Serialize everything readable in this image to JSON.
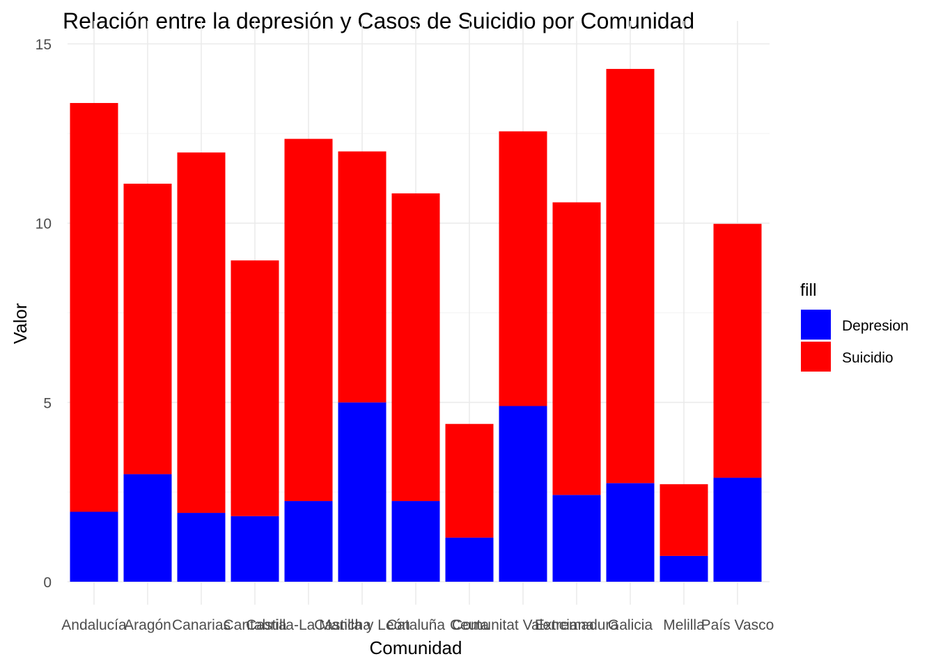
{
  "chart_data": {
    "type": "bar",
    "stacked": true,
    "title": "Relación entre la depresión y Casos de Suicidio por Comunidad",
    "xlabel": "Comunidad",
    "ylabel": "Valor",
    "ylim": [
      0,
      15
    ],
    "yticks": [
      0,
      5,
      10,
      15
    ],
    "grid": true,
    "legend": {
      "title": "fill",
      "position": "right"
    },
    "categories": [
      "Andalucía",
      "Aragón",
      "Canarias",
      "Cantabria",
      "Castilla-La Mancha",
      "Castilla y León",
      "Cataluña",
      "Ceuta",
      "Comunitat Valenciana",
      "Extremadura",
      "Galicia",
      "Melilla",
      "País Vasco"
    ],
    "series": [
      {
        "name": "Depresion",
        "color": "#0000ff",
        "values": [
          1.95,
          3.0,
          1.92,
          1.83,
          2.25,
          5.0,
          2.25,
          1.23,
          4.9,
          2.42,
          2.75,
          0.72,
          2.9
        ]
      },
      {
        "name": "Suicidio",
        "color": "#ff0000",
        "values": [
          11.4,
          8.1,
          10.05,
          7.13,
          10.1,
          7.0,
          8.58,
          3.17,
          7.66,
          8.16,
          11.55,
          2.0,
          7.08
        ]
      }
    ]
  }
}
